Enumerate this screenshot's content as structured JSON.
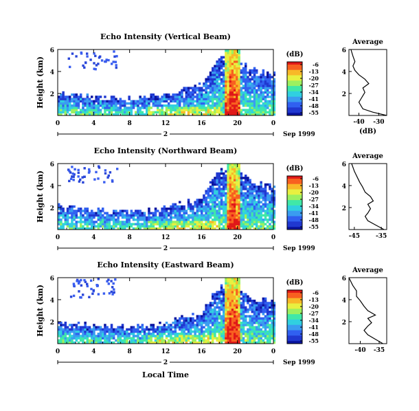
{
  "panels": [
    {
      "title": "Echo Intensity (Vertical Beam)",
      "ylabel": "Height (km)",
      "yticks": [
        "6",
        "4",
        "2"
      ],
      "xticks": [
        "0",
        "4",
        "8",
        "12",
        "16",
        "20",
        "0"
      ],
      "date_day": "2",
      "date_suffix": "Sep 1999",
      "cbar_unit": "(dB)",
      "cbar_ticks": [
        "-6",
        "-13",
        "-20",
        "-27",
        "-34",
        "-41",
        "-48",
        "-55"
      ],
      "avg_title": "Average",
      "avg_xticks": [
        "-40",
        "-30"
      ],
      "avg_yticks": [
        "6",
        "4",
        "2"
      ],
      "avg_xlabel": "(dB)"
    },
    {
      "title": "Echo Intensity (Northward Beam)",
      "ylabel": "Height (km)",
      "yticks": [
        "6",
        "4",
        "2"
      ],
      "xticks": [
        "0",
        "4",
        "8",
        "12",
        "16",
        "20",
        "0"
      ],
      "date_day": "2",
      "date_suffix": "Sep 1999",
      "cbar_unit": "(dB)",
      "cbar_ticks": [
        "-6",
        "-13",
        "-20",
        "-27",
        "-34",
        "-41",
        "-48",
        "-55"
      ],
      "avg_title": "Average",
      "avg_xticks": [
        "-45",
        "-35"
      ],
      "avg_yticks": [
        "6",
        "4",
        "2"
      ],
      "avg_xlabel": ""
    },
    {
      "title": "Echo Intensity (Eastward Beam)",
      "ylabel": "Height (km)",
      "yticks": [
        "6",
        "4",
        "2"
      ],
      "xticks": [
        "0",
        "4",
        "8",
        "12",
        "16",
        "20",
        "0"
      ],
      "date_day": "2",
      "date_suffix": "Sep 1999",
      "cbar_unit": "(dB)",
      "cbar_ticks": [
        "-6",
        "-13",
        "-20",
        "-27",
        "-34",
        "-41",
        "-48",
        "-55"
      ],
      "avg_title": "Average",
      "avg_xticks": [
        "-40",
        "-35"
      ],
      "avg_yticks": [
        "6",
        "4",
        "2"
      ],
      "avg_xlabel": ""
    }
  ],
  "xlabel": "Local Time",
  "chart_data": [
    {
      "type": "heatmap",
      "title": "Echo Intensity (Vertical Beam)",
      "xlabel": "Local Time",
      "ylabel": "Height (km)",
      "xlim": [
        0,
        24
      ],
      "ylim": [
        0,
        6
      ],
      "colorbar": {
        "label": "(dB)",
        "range": [
          -55,
          -6
        ],
        "ticks": [
          -6,
          -13,
          -20,
          -27,
          -34,
          -41,
          -48,
          -55
        ]
      },
      "echo_top_km": {
        "x": [
          0,
          4,
          8,
          12,
          16,
          17,
          18,
          19,
          20,
          22,
          24
        ],
        "y": [
          2.2,
          1.8,
          1.6,
          2.0,
          3.0,
          4.5,
          5.2,
          5.5,
          5.0,
          4.2,
          3.8
        ]
      },
      "convective_core_hours": [
        18.5,
        20.3
      ]
    },
    {
      "type": "line",
      "title": "Average",
      "xlabel": "(dB)",
      "xlim": [
        -45,
        -26
      ],
      "ylim": [
        0,
        6
      ],
      "series": [
        {
          "x": [
            -26,
            -33,
            -38,
            -40,
            -39,
            -38,
            -37,
            -38,
            -35,
            -37,
            -40,
            -42,
            -43,
            -42,
            -43,
            -44
          ],
          "y": [
            0,
            0.3,
            0.6,
            1.2,
            1.5,
            1.8,
            2.1,
            2.5,
            2.9,
            3.3,
            3.7,
            4.1,
            4.5,
            4.9,
            5.4,
            6.0
          ]
        }
      ]
    },
    {
      "type": "heatmap",
      "title": "Echo Intensity (Northward Beam)",
      "xlabel": "Local Time",
      "ylabel": "Height (km)",
      "xlim": [
        0,
        24
      ],
      "ylim": [
        0,
        6
      ],
      "colorbar": {
        "label": "(dB)",
        "range": [
          -55,
          -6
        ],
        "ticks": [
          -6,
          -13,
          -20,
          -27,
          -34,
          -41,
          -48,
          -55
        ]
      },
      "echo_top_km": {
        "x": [
          0,
          4,
          8,
          12,
          16,
          17,
          18,
          19,
          20,
          22,
          24
        ],
        "y": [
          2.2,
          1.8,
          1.7,
          2.0,
          3.0,
          4.5,
          5.4,
          5.6,
          5.2,
          4.3,
          4.0
        ]
      },
      "convective_core_hours": [
        18.6,
        20.2
      ]
    },
    {
      "type": "line",
      "title": "Average",
      "xlim": [
        -47,
        -33
      ],
      "ylim": [
        0,
        6
      ],
      "series": [
        {
          "x": [
            -34,
            -37,
            -40,
            -41,
            -40,
            -39,
            -40,
            -38,
            -39,
            -41,
            -42,
            -43,
            -44,
            -45,
            -46
          ],
          "y": [
            0,
            0.4,
            0.8,
            1.2,
            1.5,
            1.9,
            2.3,
            2.6,
            3.0,
            3.4,
            3.9,
            4.3,
            4.8,
            5.3,
            6.0
          ]
        }
      ]
    },
    {
      "type": "heatmap",
      "title": "Echo Intensity (Eastward Beam)",
      "xlabel": "Local Time",
      "ylabel": "Height (km)",
      "xlim": [
        0,
        24
      ],
      "ylim": [
        0,
        6
      ],
      "colorbar": {
        "label": "(dB)",
        "range": [
          -55,
          -6
        ],
        "ticks": [
          -6,
          -13,
          -20,
          -27,
          -34,
          -41,
          -48,
          -55
        ]
      },
      "echo_top_km": {
        "x": [
          0,
          4,
          8,
          12,
          16,
          17,
          18,
          19,
          20,
          22,
          24
        ],
        "y": [
          2.1,
          1.8,
          1.6,
          2.0,
          3.0,
          4.4,
          5.3,
          5.6,
          5.1,
          4.2,
          3.9
        ]
      },
      "convective_core_hours": [
        18.4,
        20.3
      ]
    },
    {
      "type": "line",
      "title": "Average",
      "xlim": [
        -43,
        -33
      ],
      "ylim": [
        0,
        6
      ],
      "series": [
        {
          "x": [
            -34,
            -36,
            -38,
            -39,
            -38,
            -37,
            -38,
            -36,
            -38,
            -39,
            -40,
            -41,
            -41,
            -42,
            -43
          ],
          "y": [
            0,
            0.4,
            0.8,
            1.2,
            1.6,
            1.9,
            2.3,
            2.6,
            3.0,
            3.4,
            3.9,
            4.3,
            4.8,
            5.3,
            6.0
          ]
        }
      ]
    }
  ]
}
